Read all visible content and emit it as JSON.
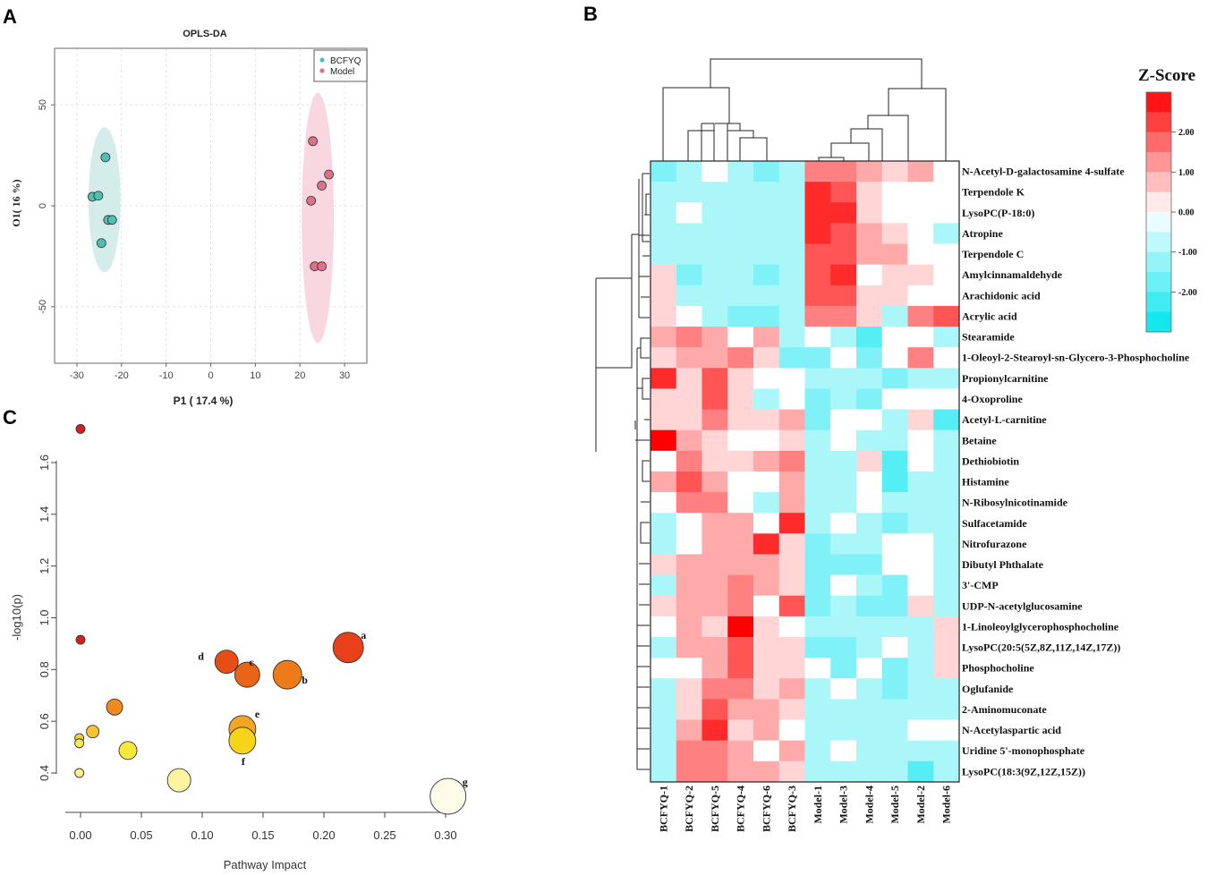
{
  "panels": {
    "a": "A",
    "b": "B",
    "c": "C"
  },
  "chart_data": [
    {
      "type": "scatter",
      "title": "OPLS-DA",
      "xlabel": "P1 ( 17.4 %)",
      "ylabel": "O1( 16 %)",
      "xlim": [
        -35,
        35
      ],
      "ylim": [
        -78,
        78
      ],
      "xticks": [
        -30,
        -20,
        -10,
        0,
        10,
        20,
        30
      ],
      "yticks": [
        -50,
        0,
        50
      ],
      "grid": true,
      "legend_position": "top-right",
      "series": [
        {
          "name": "BCFYQ",
          "color": "#4dbfb3",
          "ellipse_color": "#cdeae6",
          "ellipse": {
            "cx": -23.8,
            "cy": 3,
            "rx": 3.6,
            "ry": 36
          },
          "points": [
            [
              -23.6,
              24
            ],
            [
              -26.5,
              4.5
            ],
            [
              -25.2,
              5
            ],
            [
              -23,
              -7
            ],
            [
              -22.1,
              -7
            ],
            [
              -24.5,
              -18.5
            ]
          ]
        },
        {
          "name": "Model",
          "color": "#e0708a",
          "ellipse_color": "#f7d0da",
          "ellipse": {
            "cx": 24,
            "cy": -6,
            "rx": 3.6,
            "ry": 62
          },
          "points": [
            [
              22.9,
              32
            ],
            [
              26.5,
              15.5
            ],
            [
              24.9,
              10
            ],
            [
              22.5,
              2.5
            ],
            [
              23.3,
              -30
            ],
            [
              24.9,
              -30
            ]
          ]
        }
      ]
    },
    {
      "type": "heatmap",
      "title": "Z-Score",
      "columns": [
        "BCFYQ-1",
        "BCFYQ-2",
        "BCFYQ-5",
        "BCFYQ-4",
        "BCFYQ-6",
        "BCFYQ-3",
        "Model-1",
        "Model-3",
        "Model-4",
        "Model-5",
        "Model-2",
        "Model-6"
      ],
      "rows": [
        "N-Acetyl-D-galactosamine 4-sulfate",
        "Terpendole K",
        "LysoPC(P-18:0)",
        "Atropine",
        "Terpendole C",
        "Amylcinnamaldehyde",
        "Arachidonic acid",
        "Acrylic acid",
        "Stearamide",
        "1-Oleoyl-2-Stearoyl-sn-Glycero-3-Phosphocholine",
        "Propionylcarnitine",
        "4-Oxoproline",
        "Acetyl-L-carnitine",
        "Betaine",
        "Dethiobiotin",
        "Histamine",
        "N-Ribosylnicotinamide",
        "Sulfacetamide",
        "Nitrofurazone",
        "Dibutyl Phthalate",
        "3'-CMP",
        "UDP-N-acetylglucosamine",
        "1-Linoleoylglycerophosphocholine",
        "LysoPC(20:5(5Z,8Z,11Z,14Z,17Z))",
        "Phosphocholine",
        "Oglufanide",
        "2-Aminomuconate",
        "N-Acetylaspartic acid",
        "Uridine 5'-monophosphate",
        "LysoPC(18:3(9Z,12Z,15Z))"
      ],
      "values": [
        [
          -1.5,
          -1,
          0,
          -1,
          -1.5,
          -1,
          1.5,
          1.5,
          1,
          0.5,
          1,
          0
        ],
        [
          -1,
          -1,
          -1,
          -1,
          -1,
          -1,
          2.5,
          2,
          0.5,
          0,
          0,
          0
        ],
        [
          -1,
          0,
          -1,
          -1,
          -1,
          -1,
          2.5,
          2.5,
          0.5,
          0,
          0,
          0
        ],
        [
          -1,
          -1,
          -1,
          -1,
          -1,
          -1,
          2.5,
          2,
          1,
          0.5,
          0,
          -1
        ],
        [
          -1,
          -1,
          -1,
          -1,
          -1,
          -1,
          2,
          2,
          1,
          1,
          0,
          0
        ],
        [
          0.5,
          -1.5,
          -1,
          -1,
          -1.5,
          -1,
          2,
          2.5,
          0,
          0.5,
          0.5,
          0
        ],
        [
          0.5,
          -1,
          -1,
          -1,
          -1,
          -1,
          2,
          2,
          0.5,
          0.5,
          0,
          0
        ],
        [
          0.5,
          0,
          -1,
          -1.5,
          -1.5,
          -1,
          1.5,
          1.5,
          0.5,
          -1,
          1.5,
          2
        ],
        [
          1,
          1.5,
          1,
          0,
          1,
          -1,
          0,
          -1,
          -2,
          0,
          0,
          -1
        ],
        [
          0.5,
          1,
          1,
          1.5,
          0.5,
          -1.5,
          -1.5,
          0,
          -1.5,
          0,
          1.5,
          0
        ],
        [
          2.5,
          0.5,
          2,
          0.5,
          0,
          0,
          -1,
          -1,
          -1,
          -1.5,
          -1,
          -1
        ],
        [
          0.5,
          0.5,
          2,
          0.5,
          -1,
          0,
          -1.5,
          -1,
          -1.5,
          0,
          0,
          0
        ],
        [
          0.5,
          0.5,
          1.5,
          0.5,
          0.5,
          1,
          -1.5,
          0,
          0,
          -1,
          0.5,
          -2
        ],
        [
          3,
          1,
          0.5,
          0,
          0,
          0.5,
          -1,
          0,
          -1,
          -1,
          0,
          -1
        ],
        [
          0,
          1.5,
          0.5,
          0.5,
          1,
          1.5,
          -1,
          -1,
          0.5,
          -2,
          0,
          -1
        ],
        [
          1,
          2,
          1,
          0,
          0,
          1,
          -1,
          -1,
          0,
          -2,
          -1,
          -1
        ],
        [
          0,
          1.5,
          1.5,
          0,
          -1,
          1,
          -1,
          -1,
          0,
          -1,
          -1,
          -1
        ],
        [
          -1,
          0,
          1,
          1,
          0,
          2.5,
          -1,
          0,
          -1,
          -1.5,
          -1,
          -1
        ],
        [
          -1,
          0,
          1,
          1,
          2.5,
          0.5,
          -1.5,
          -1,
          -1,
          0,
          0,
          -1
        ],
        [
          0.5,
          1,
          1,
          1,
          1,
          0.5,
          -1.5,
          -1.5,
          -1.5,
          0,
          0,
          -1
        ],
        [
          -1,
          1,
          1,
          1.5,
          1,
          0.5,
          -1.5,
          0,
          -1,
          -1.5,
          0,
          -1
        ],
        [
          0.5,
          1,
          1,
          1.5,
          0,
          2,
          -1.5,
          -1,
          -1.5,
          -1.5,
          0.5,
          -1
        ],
        [
          0,
          1,
          0.5,
          3,
          0.5,
          0,
          -1,
          -1,
          -1,
          -1,
          -1,
          0.5
        ],
        [
          -1,
          1,
          1,
          2,
          0.5,
          0.5,
          -1.5,
          -1.5,
          -1,
          0,
          -1,
          0.5
        ],
        [
          0,
          0,
          1,
          2,
          0.5,
          0.5,
          0,
          -1.5,
          0,
          -1.5,
          -1,
          0.5
        ],
        [
          -1,
          0.5,
          1.5,
          1.5,
          0.5,
          1,
          -1,
          0,
          -1,
          -1.5,
          -1,
          -1
        ],
        [
          -1,
          0.5,
          2,
          1,
          1,
          0.5,
          -1,
          -1,
          -1,
          -1,
          -1,
          -1
        ],
        [
          -1,
          1,
          2.5,
          0.5,
          1,
          0,
          -1,
          -1,
          -1,
          -1,
          0,
          0
        ],
        [
          -1,
          1.5,
          1.5,
          1,
          0,
          1,
          -1,
          0,
          -1,
          -1,
          -1,
          -1
        ],
        [
          -1,
          1.5,
          1.5,
          1,
          1,
          0.5,
          -1,
          -1,
          -1,
          -1,
          -2,
          -1
        ]
      ],
      "color_scale": {
        "min": -3,
        "max": 3,
        "tick_labels": [
          "2.00",
          "1.00",
          "0.00",
          "-1.00",
          "-2.00"
        ],
        "tick_values": [
          2,
          1,
          0,
          -1,
          -2
        ],
        "low_color": "#00e5ee",
        "mid_color": "#ffffff",
        "high_color": "#ff0000"
      },
      "dendrograms": {
        "columns": true,
        "rows": true
      }
    },
    {
      "type": "scatter",
      "title": "",
      "xlabel": "Pathway Impact",
      "ylabel": "-log10(p)",
      "xlim": [
        -0.012,
        0.32
      ],
      "ylim": [
        0.32,
        1.78
      ],
      "xticks": [
        "0.00",
        "0.05",
        "0.10",
        "0.15",
        "0.20",
        "0.25",
        "0.30"
      ],
      "yticks": [
        "0.4",
        "0.6",
        "0.8",
        "1.0",
        "1.2",
        "1.4",
        "1.6"
      ],
      "bubbles": [
        {
          "x": 0.0,
          "y": 1.73,
          "size": 5,
          "color": "#d42020",
          "label": ""
        },
        {
          "x": 0.0,
          "y": 0.915,
          "size": 5,
          "color": "#d42020",
          "label": ""
        },
        {
          "x": 0.22,
          "y": 0.885,
          "size": 17,
          "color": "#e8401a",
          "label": "a"
        },
        {
          "x": 0.12,
          "y": 0.83,
          "size": 13,
          "color": "#e84e14",
          "label": "d"
        },
        {
          "x": 0.137,
          "y": 0.78,
          "size": 14,
          "color": "#ea6416",
          "label": "c"
        },
        {
          "x": 0.17,
          "y": 0.78,
          "size": 16,
          "color": "#ef7a18",
          "label": "b"
        },
        {
          "x": 0.028,
          "y": 0.655,
          "size": 9,
          "color": "#f08a1c",
          "label": ""
        },
        {
          "x": 0.133,
          "y": 0.57,
          "size": 15,
          "color": "#f4a524",
          "label": "e"
        },
        {
          "x": 0.133,
          "y": 0.525,
          "size": 15,
          "color": "#f8d418",
          "label": "f"
        },
        {
          "x": 0.01,
          "y": 0.56,
          "size": 7,
          "color": "#f6c62a",
          "label": ""
        },
        {
          "x": -0.001,
          "y": 0.535,
          "size": 5,
          "color": "#f6d23a",
          "label": ""
        },
        {
          "x": -0.001,
          "y": 0.515,
          "size": 5,
          "color": "#fae860",
          "label": ""
        },
        {
          "x": 0.039,
          "y": 0.487,
          "size": 10,
          "color": "#f9e83c",
          "label": ""
        },
        {
          "x": -0.001,
          "y": 0.4,
          "size": 5,
          "color": "#fcf090",
          "label": ""
        },
        {
          "x": 0.081,
          "y": 0.372,
          "size": 13,
          "color": "#fdf3a0",
          "label": ""
        },
        {
          "x": 0.302,
          "y": 0.31,
          "size": 20,
          "color": "#fefbe8",
          "label": "g"
        }
      ]
    }
  ]
}
